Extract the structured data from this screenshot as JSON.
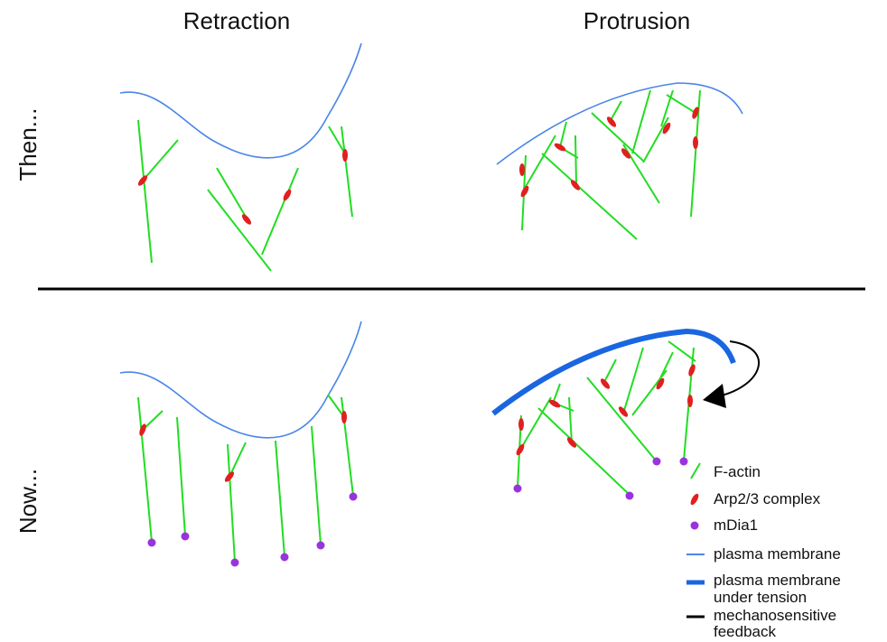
{
  "columns": [
    "Retraction",
    "Protrusion"
  ],
  "rows": [
    "Then...",
    "Now..."
  ],
  "legend": [
    {
      "lines": [
        "F-actin"
      ]
    },
    {
      "lines": [
        "Arp2/3 complex"
      ]
    },
    {
      "lines": [
        "mDia1"
      ]
    },
    {
      "lines": [
        "plasma membrane"
      ]
    },
    {
      "lines": [
        "plasma membrane",
        "under tension"
      ]
    },
    {
      "lines": [
        "mechanosensitive",
        "feedback"
      ]
    }
  ]
}
